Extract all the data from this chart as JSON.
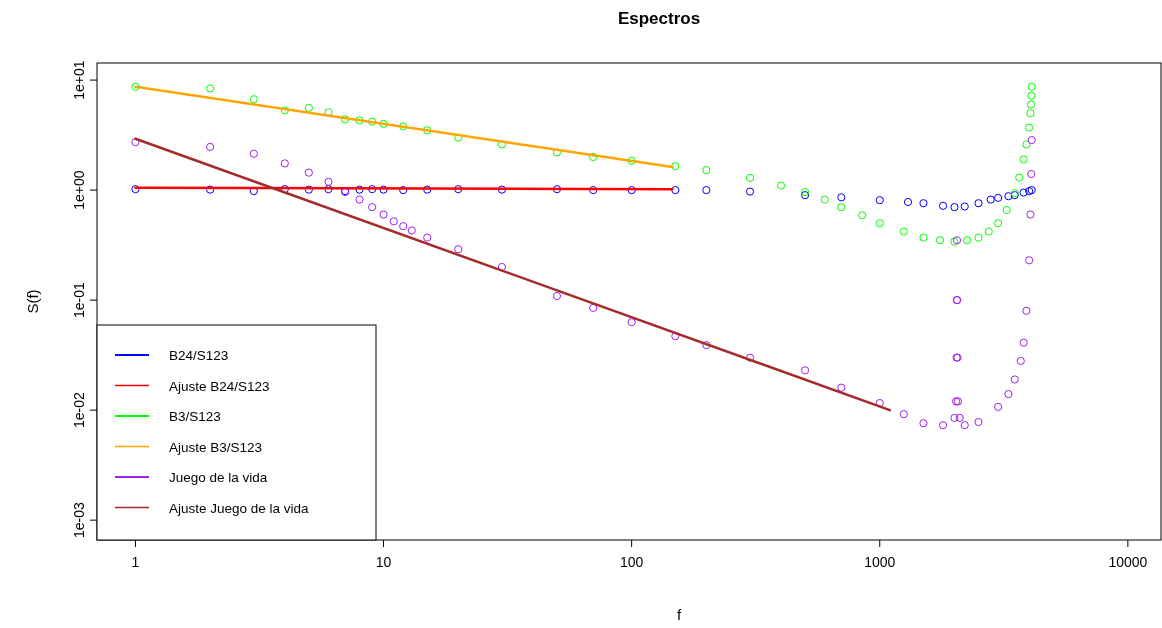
{
  "chart_data": {
    "type": "scatter",
    "title": "Espectros",
    "xlabel": "f",
    "ylabel": "S(f)",
    "log": "xy",
    "legend": "bottom left",
    "grid": false,
    "xlim": [
      0.7,
      13600
    ],
    "ylim": [
      0.00066,
      14.3
    ],
    "xticks": [
      1,
      10,
      100,
      1000,
      10000
    ],
    "yticks": [
      {
        "value": 0.001,
        "label": "1e-03"
      },
      {
        "value": 0.01,
        "label": "1e-02"
      },
      {
        "value": 0.1,
        "label": "1e-01"
      },
      {
        "value": 1,
        "label": "1e+00"
      },
      {
        "value": 10,
        "label": "1e+01"
      }
    ],
    "series": [
      {
        "name": "B24/S123",
        "marker": "circle",
        "color": "#0000ff",
        "x": [
          1,
          2,
          3,
          4,
          5,
          6,
          7,
          8,
          9,
          10,
          12,
          15,
          20,
          30,
          50,
          70,
          100,
          150,
          200,
          300,
          500,
          700,
          1000,
          1300,
          1500,
          1800,
          2000,
          2200,
          2500,
          2800,
          3000,
          3300,
          3500,
          3800,
          4000,
          4096
        ],
        "values": [
          1.02,
          1.01,
          0.98,
          1.02,
          1.01,
          1.02,
          0.98,
          1.01,
          1.02,
          1.01,
          1.0,
          1.01,
          1.02,
          1.01,
          1.02,
          1.0,
          1.0,
          1.0,
          1.0,
          0.97,
          0.9,
          0.86,
          0.81,
          0.78,
          0.76,
          0.72,
          0.7,
          0.71,
          0.76,
          0.82,
          0.85,
          0.88,
          0.9,
          0.95,
          0.98,
          1.0
        ]
      },
      {
        "name": "Ajuste B24/S123",
        "type": "line",
        "color": "#ff0000",
        "x": [
          1,
          146
        ],
        "values": [
          1.05,
          1.02
        ]
      },
      {
        "name": "B3/S123",
        "marker": "circle",
        "color": "#00ff00",
        "x": [
          1,
          2,
          3,
          4,
          5,
          6,
          7,
          8,
          9,
          10,
          12,
          15,
          20,
          30,
          50,
          70,
          100,
          150,
          200,
          300,
          400,
          500,
          600,
          700,
          850,
          1000,
          1250,
          1500,
          1750,
          2000,
          2250,
          2500,
          2750,
          3000,
          3250,
          3500,
          3650,
          3800,
          3900,
          4000,
          4050,
          4070,
          4085,
          4096
        ],
        "values": [
          8.7,
          8.4,
          6.7,
          5.3,
          5.6,
          5.1,
          4.4,
          4.3,
          4.2,
          4.0,
          3.8,
          3.5,
          3.0,
          2.6,
          2.2,
          2.0,
          1.85,
          1.65,
          1.52,
          1.29,
          1.1,
          0.96,
          0.82,
          0.7,
          0.59,
          0.5,
          0.42,
          0.37,
          0.35,
          0.34,
          0.35,
          0.37,
          0.42,
          0.5,
          0.66,
          0.94,
          1.3,
          1.9,
          2.6,
          3.7,
          5.0,
          6.0,
          7.2,
          8.7
        ]
      },
      {
        "name": "Ajuste B3/S123",
        "type": "line",
        "color": "#ffa500",
        "x": [
          1,
          146
        ],
        "values": [
          8.7,
          1.62
        ]
      },
      {
        "name": "Juego de la vida",
        "marker": "circle",
        "color": "#a020f0",
        "x": [
          1,
          2,
          3,
          4,
          5,
          6,
          7,
          8,
          9,
          10,
          11,
          12,
          13,
          15,
          20,
          30,
          50,
          70,
          100,
          150,
          200,
          300,
          500,
          700,
          1000,
          1250,
          1500,
          1800,
          2000,
          2030,
          2040,
          2045,
          2048,
          2051,
          2056,
          2066,
          2100,
          2200,
          2500,
          3000,
          3300,
          3500,
          3700,
          3800,
          3900,
          4000,
          4050,
          4080,
          4096
        ],
        "values": [
          2.73,
          2.47,
          2.14,
          1.75,
          1.44,
          1.19,
          0.96,
          0.82,
          0.7,
          0.6,
          0.52,
          0.47,
          0.43,
          0.37,
          0.29,
          0.2,
          0.109,
          0.085,
          0.063,
          0.047,
          0.039,
          0.03,
          0.023,
          0.016,
          0.0116,
          0.0092,
          0.0076,
          0.0073,
          0.0085,
          0.012,
          0.03,
          0.1,
          0.35,
          0.1,
          0.03,
          0.012,
          0.0085,
          0.0073,
          0.0078,
          0.0107,
          0.014,
          0.019,
          0.028,
          0.041,
          0.08,
          0.23,
          0.6,
          1.4,
          2.85
        ]
      },
      {
        "name": "Ajuste Juego de la vida",
        "type": "line",
        "color": "#a52a2a",
        "x": [
          1,
          1098
        ],
        "values": [
          2.93,
          0.01
        ]
      }
    ]
  }
}
